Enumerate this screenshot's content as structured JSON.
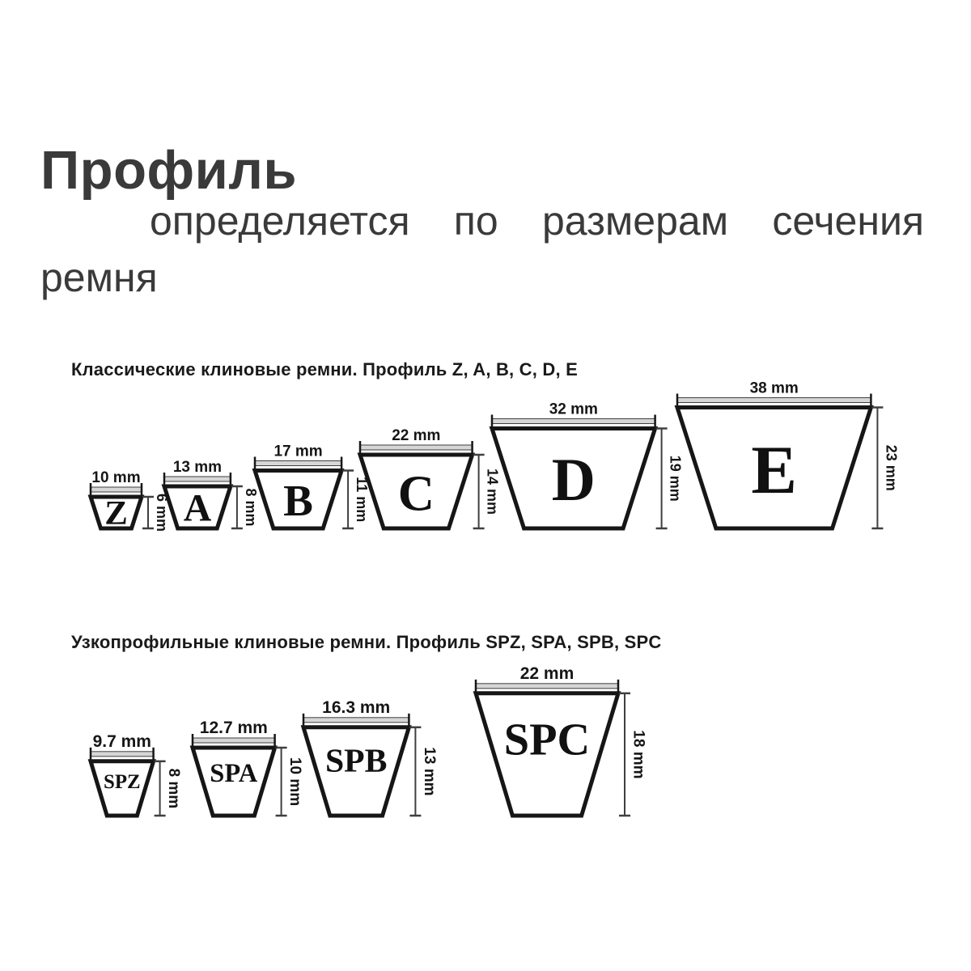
{
  "page": {
    "title": "Профиль",
    "paragraph": {
      "line1_words": [
        "определяется",
        "по",
        "размерам",
        "сечения"
      ],
      "line2": "ремня",
      "full_text": "определяется по размерам сечения ремня"
    }
  },
  "chart_data": [
    {
      "type": "diagram",
      "title": "Классические клиновые ремни. Профиль Z, A, B, C, D, E",
      "unit": "mm",
      "belts": [
        {
          "label": "Z",
          "top_width_mm": 10,
          "height_mm": 6,
          "top_label": "10 mm",
          "height_label": "6 mm"
        },
        {
          "label": "A",
          "top_width_mm": 13,
          "height_mm": 8,
          "top_label": "13 mm",
          "height_label": "8 mm"
        },
        {
          "label": "B",
          "top_width_mm": 17,
          "height_mm": 11,
          "top_label": "17 mm",
          "height_label": "11 mm"
        },
        {
          "label": "C",
          "top_width_mm": 22,
          "height_mm": 14,
          "top_label": "22 mm",
          "height_label": "14 mm"
        },
        {
          "label": "D",
          "top_width_mm": 32,
          "height_mm": 19,
          "top_label": "32 mm",
          "height_label": "19 mm"
        },
        {
          "label": "E",
          "top_width_mm": 38,
          "height_mm": 23,
          "top_label": "38 mm",
          "height_label": "23 mm"
        }
      ]
    },
    {
      "type": "diagram",
      "title": "Узкопрофильные клиновые ремни. Профиль SPZ, SPA, SPB, SPC",
      "unit": "mm",
      "belts": [
        {
          "label": "SPZ",
          "top_width_mm": 9.7,
          "height_mm": 8,
          "top_label": "9.7 mm",
          "height_label": "8 mm"
        },
        {
          "label": "SPA",
          "top_width_mm": 12.7,
          "height_mm": 10,
          "top_label": "12.7 mm",
          "height_label": "10 mm"
        },
        {
          "label": "SPB",
          "top_width_mm": 16.3,
          "height_mm": 13,
          "top_label": "16.3 mm",
          "height_label": "13 mm"
        },
        {
          "label": "SPC",
          "top_width_mm": 22,
          "height_mm": 18,
          "top_label": "22 mm",
          "height_label": "18 mm"
        }
      ]
    }
  ],
  "colors": {
    "background": "#ffffff",
    "body_text": "#3a3a3a",
    "diagram_ink": "#161616",
    "dim_line": "#3f3f3f",
    "dim_fill": "#d6d6d6",
    "belt_fill": "#ffffff"
  }
}
